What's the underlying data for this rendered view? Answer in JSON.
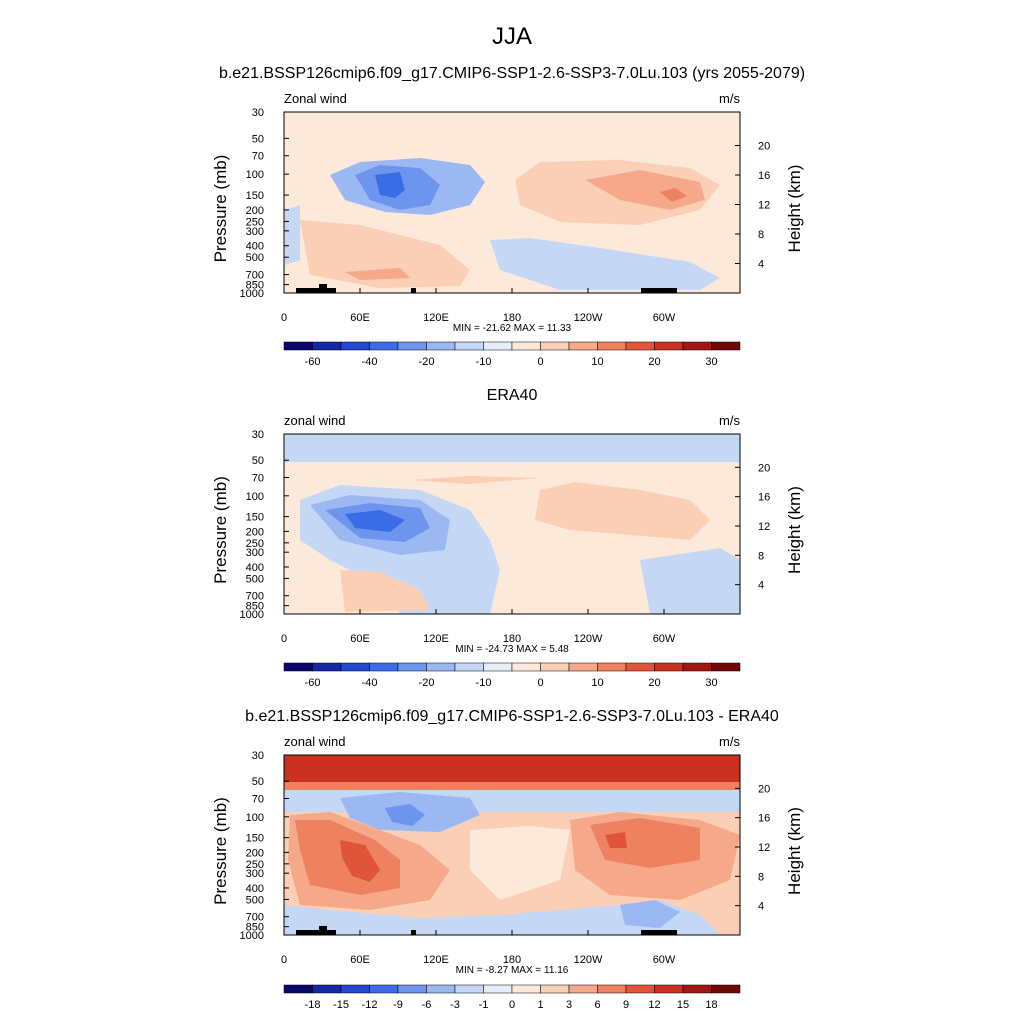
{
  "figure": {
    "title": "JJA"
  },
  "chart_data": [
    {
      "type": "heatmap",
      "title": "b.e21.BSSP126cmip6.f09_g17.CMIP6-SSP1-2.6-SSP3-7.0Lu.103 (yrs 2055-2079)",
      "left_label": "Zonal wind",
      "right_label": "m/s",
      "ylabel": "Pressure (mb)",
      "ylabel_right": "Height (km)",
      "x_ticks": [
        "0",
        "60E",
        "120E",
        "180",
        "120W",
        "60W"
      ],
      "y_ticks": [
        "30",
        "50",
        "70",
        "100",
        "150",
        "200",
        "250",
        "300",
        "400",
        "500",
        "700",
        "850",
        "1000"
      ],
      "height_ticks": [
        "20",
        "16",
        "12",
        "8",
        "4"
      ],
      "stats": "MIN = -21.62  MAX =  11.33",
      "colorbar_labels": [
        "-60",
        "-40",
        "-20",
        "-10",
        "0",
        "10",
        "20",
        "30"
      ],
      "colors": [
        "#cfe4f7",
        "#a9c6f2",
        "#7ca2ec",
        "#3f6fe0",
        "#fde9da",
        "#f9c9ae",
        "#f2a488",
        "#e46645"
      ]
    },
    {
      "type": "heatmap",
      "title": "ERA40",
      "left_label": "zonal wind",
      "right_label": "m/s",
      "ylabel": "Pressure (mb)",
      "ylabel_right": "Height (km)",
      "x_ticks": [
        "0",
        "60E",
        "120E",
        "180",
        "120W",
        "60W"
      ],
      "y_ticks": [
        "30",
        "50",
        "70",
        "100",
        "150",
        "200",
        "250",
        "300",
        "400",
        "500",
        "700",
        "850",
        "1000"
      ],
      "height_ticks": [
        "20",
        "16",
        "12",
        "8",
        "4"
      ],
      "stats": "MIN = -24.73  MAX =   5.48",
      "colorbar_labels": [
        "-60",
        "-40",
        "-20",
        "-10",
        "0",
        "10",
        "20",
        "30"
      ],
      "colors": [
        "#cfe4f7",
        "#a9c6f2",
        "#7ca2ec",
        "#3f6fe0",
        "#fde9da",
        "#f9c9ae",
        "#f2a488",
        "#e46645"
      ]
    },
    {
      "type": "heatmap",
      "title": "b.e21.BSSP126cmip6.f09_g17.CMIP6-SSP1-2.6-SSP3-7.0Lu.103 - ERA40",
      "left_label": "zonal wind",
      "right_label": "m/s",
      "ylabel": "Pressure (mb)",
      "ylabel_right": "Height (km)",
      "x_ticks": [
        "0",
        "60E",
        "120E",
        "180",
        "120W",
        "60W"
      ],
      "y_ticks": [
        "30",
        "50",
        "70",
        "100",
        "150",
        "200",
        "250",
        "300",
        "400",
        "500",
        "700",
        "850",
        "1000"
      ],
      "height_ticks": [
        "20",
        "16",
        "12",
        "8",
        "4"
      ],
      "stats": "MIN =  -8.27  MAX =  11.16",
      "colorbar_labels": [
        "-18",
        "-15",
        "-12",
        "-9",
        "-6",
        "-3",
        "-1",
        "0",
        "1",
        "3",
        "6",
        "9",
        "12",
        "15",
        "18"
      ],
      "colors": [
        "#cfe4f7",
        "#a9c6f2",
        "#7ca2ec",
        "#3f6fe0",
        "#fde9da",
        "#f9c9ae",
        "#f2a488",
        "#e46645"
      ]
    }
  ],
  "colorbar_colors": [
    "#08086b",
    "#1428a8",
    "#2347cf",
    "#3a6ce8",
    "#6e95ee",
    "#9bb8f3",
    "#c4d8f6",
    "#e3eefa",
    "#fde9da",
    "#fbcfb5",
    "#f5a98a",
    "#ee8160",
    "#e0553a",
    "#c9301f",
    "#a01612",
    "#700808"
  ]
}
